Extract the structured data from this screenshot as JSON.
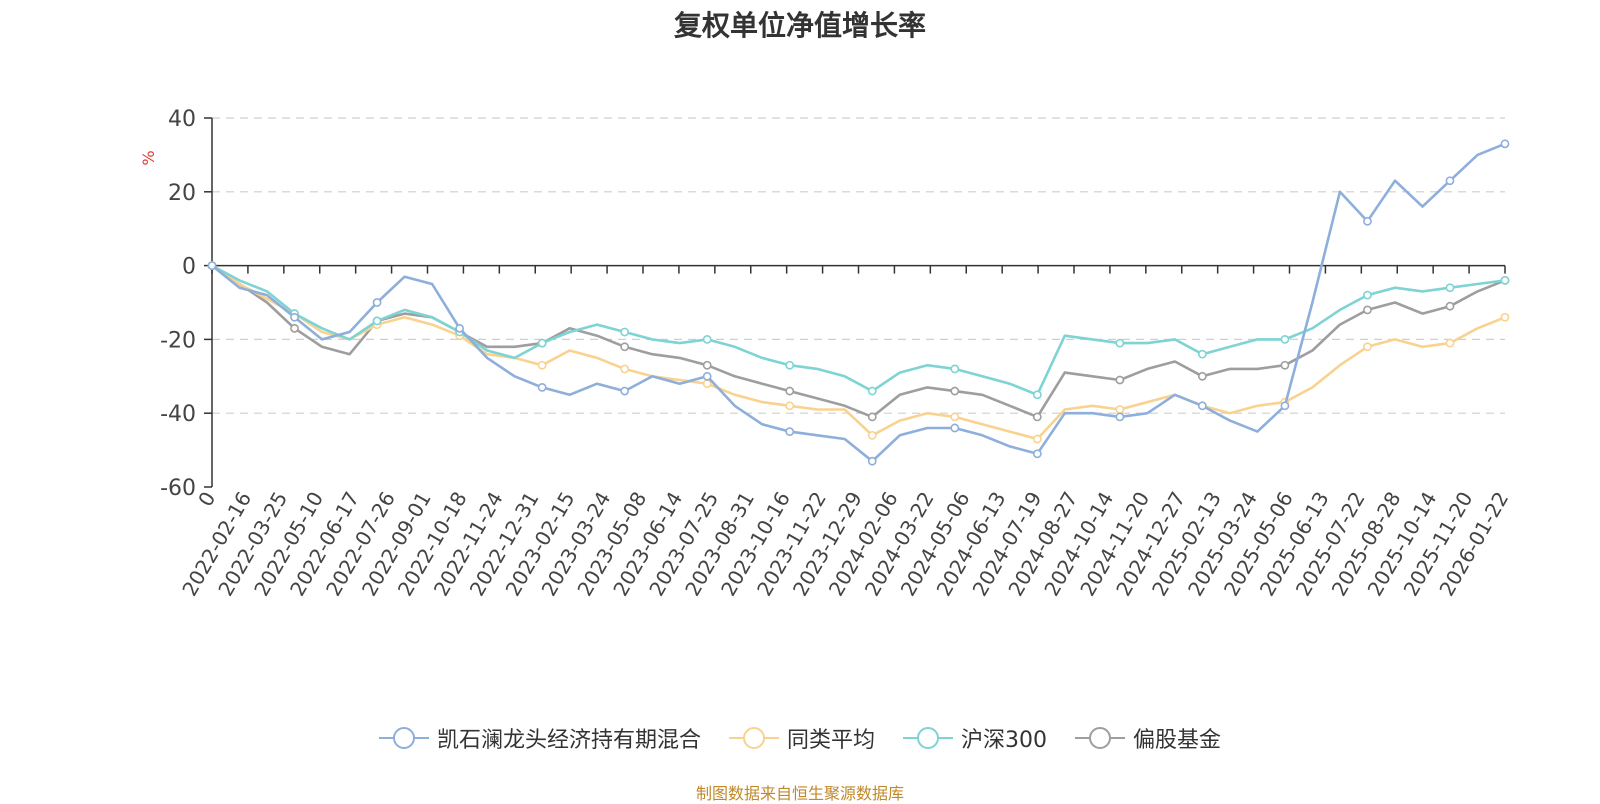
{
  "chart_data": {
    "type": "line",
    "title": "复权单位净值增长率",
    "ylabel": "%",
    "ylim": [
      -60,
      40
    ],
    "yticks": [
      40,
      20,
      0,
      -20,
      -40,
      -60
    ],
    "grid": true,
    "legend_position": "bottom",
    "x_tick_labels": [
      "0",
      "2022-02-16",
      "2022-03-25",
      "2022-05-10",
      "2022-06-17",
      "2022-07-26",
      "2022-09-01",
      "2022-10-18",
      "2022-11-24",
      "2022-12-31",
      "2023-02-15",
      "2023-03-24",
      "2023-05-08",
      "2023-06-14",
      "2023-07-25",
      "2023-08-31",
      "2023-10-16",
      "2023-11-22",
      "2023-12-29",
      "2024-02-06",
      "2024-03-22",
      "2024-05-06",
      "2024-06-13",
      "2024-07-19",
      "2024-08-27",
      "2024-10-14",
      "2024-11-20",
      "2024-12-27",
      "2025-02-13",
      "2025-03-24",
      "2025-05-06",
      "2025-06-13",
      "2025-07-22",
      "2025-08-28",
      "2025-10-14",
      "2025-11-20",
      "2026-01-22"
    ],
    "series": [
      {
        "name": "凯石澜龙头经济持有期混合",
        "color": "#8eaedb",
        "values": [
          0,
          -6,
          -8,
          -14,
          -20,
          -18,
          -10,
          -3,
          -5,
          -17,
          -25,
          -30,
          -33,
          -35,
          -32,
          -34,
          -30,
          -32,
          -30,
          -38,
          -43,
          -45,
          -46,
          -47,
          -53,
          -46,
          -44,
          -44,
          -46,
          -49,
          -51,
          -40,
          -40,
          -41,
          -40,
          -35,
          -38,
          -42,
          -45,
          -38,
          -10,
          20,
          12,
          23,
          16,
          23,
          30,
          33
        ]
      },
      {
        "name": "同类平均",
        "color": "#f9d28f",
        "values": [
          0,
          -5,
          -9,
          -13,
          -18,
          -20,
          -16,
          -14,
          -16,
          -19,
          -24,
          -25,
          -27,
          -23,
          -25,
          -28,
          -30,
          -31,
          -32,
          -35,
          -37,
          -38,
          -39,
          -39,
          -46,
          -42,
          -40,
          -41,
          -43,
          -45,
          -47,
          -39,
          -38,
          -39,
          -37,
          -35,
          -38,
          -40,
          -38,
          -37,
          -33,
          -27,
          -22,
          -20,
          -22,
          -21,
          -17,
          -14
        ]
      },
      {
        "name": "沪深300",
        "color": "#7ed3d3",
        "values": [
          0,
          -4,
          -7,
          -13,
          -17,
          -20,
          -15,
          -12,
          -14,
          -18,
          -23,
          -25,
          -21,
          -18,
          -16,
          -18,
          -20,
          -21,
          -20,
          -22,
          -25,
          -27,
          -28,
          -30,
          -34,
          -29,
          -27,
          -28,
          -30,
          -32,
          -35,
          -19,
          -20,
          -21,
          -21,
          -20,
          -24,
          -22,
          -20,
          -20,
          -17,
          -12,
          -8,
          -6,
          -7,
          -6,
          -5,
          -4
        ]
      },
      {
        "name": "偏股基金",
        "color": "#9e9e9e",
        "values": [
          0,
          -5,
          -10,
          -17,
          -22,
          -24,
          -15,
          -13,
          -14,
          -18,
          -22,
          -22,
          -21,
          -17,
          -19,
          -22,
          -24,
          -25,
          -27,
          -30,
          -32,
          -34,
          -36,
          -38,
          -41,
          -35,
          -33,
          -34,
          -35,
          -38,
          -41,
          -29,
          -30,
          -31,
          -28,
          -26,
          -30,
          -28,
          -28,
          -27,
          -23,
          -16,
          -12,
          -10,
          -13,
          -11,
          -7,
          -4
        ]
      }
    ]
  },
  "legend": {
    "items": [
      {
        "label": "凯石澜龙头经济持有期混合"
      },
      {
        "label": "同类平均"
      },
      {
        "label": "沪深300"
      },
      {
        "label": "偏股基金"
      }
    ]
  },
  "source": "制图数据来自恒生聚源数据库"
}
